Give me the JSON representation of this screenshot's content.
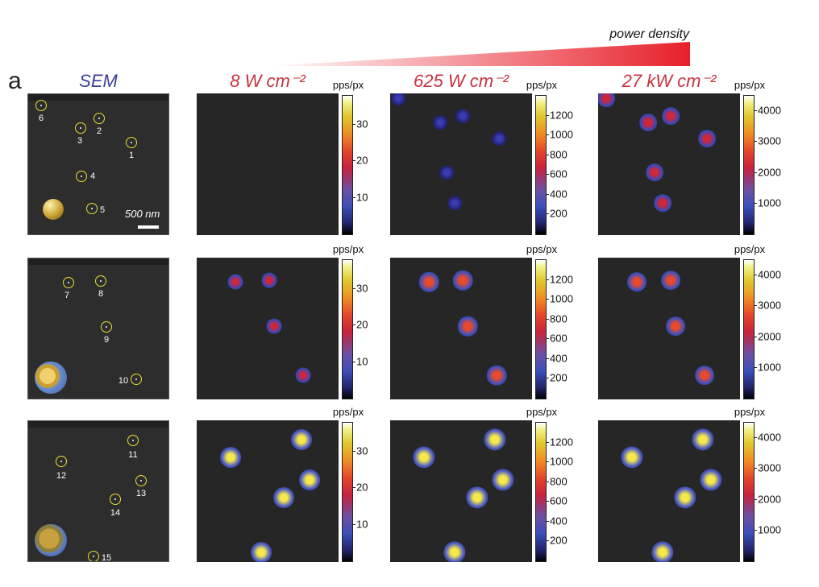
{
  "figure": {
    "panel_letter": "a",
    "power_label": "power density",
    "sem_title": "SEM",
    "power_titles": [
      "8 W cm⁻²",
      "625 W cm⁻²",
      "27 kW cm⁻²"
    ],
    "scalebar_label": "500 nm",
    "unit_label": "pps/px",
    "colorbar_ticks": [
      [
        "30",
        "20",
        "10"
      ],
      [
        "1200",
        "1000",
        "800",
        "600",
        "400",
        "200"
      ],
      [
        "4000",
        "3000",
        "2000",
        "1000"
      ]
    ],
    "particle_labels": [
      [
        "6",
        "3",
        "2",
        "1",
        "4",
        "5"
      ],
      [
        "7",
        "8",
        "9",
        "10"
      ],
      [
        "11",
        "12",
        "13",
        "14",
        "15"
      ]
    ]
  }
}
